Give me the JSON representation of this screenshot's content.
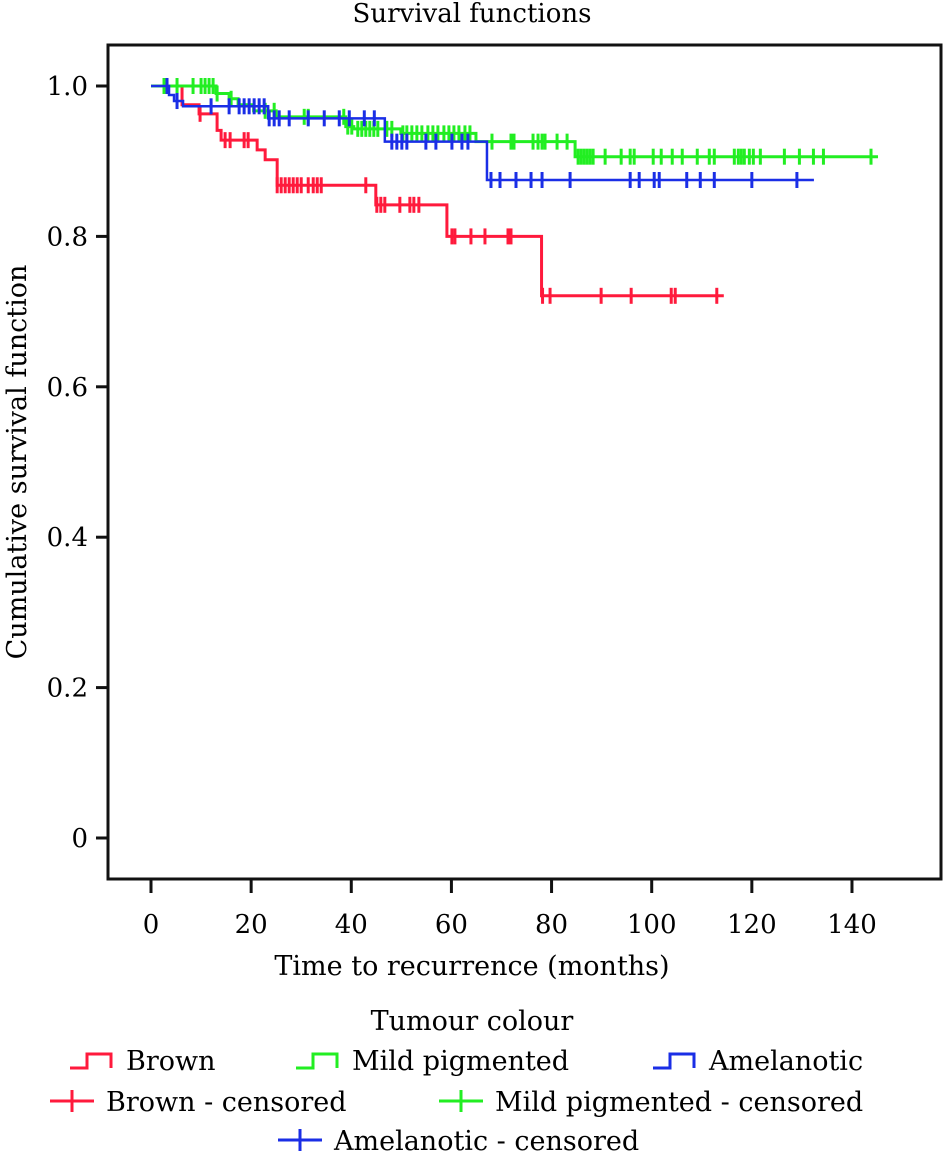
{
  "chart_data": {
    "type": "line",
    "subtype": "kaplan-meier-step",
    "title": "Survival functions",
    "xlabel": "Time to recurrence (months)",
    "ylabel": "Cumulative survival function",
    "xlim": [
      -3,
      158
    ],
    "ylim": [
      -0.055,
      1.055
    ],
    "xticks": [
      0,
      20,
      40,
      60,
      80,
      100,
      120,
      140
    ],
    "xtick_labels": [
      "0",
      "20",
      "40",
      "60",
      "80",
      "100",
      "120",
      "140"
    ],
    "yticks": [
      0,
      0.2,
      0.4,
      0.6,
      0.8,
      1.0
    ],
    "ytick_labels": [
      "0",
      "0.2",
      "0.4",
      "0.6",
      "0.8",
      "1.0"
    ],
    "grid": false,
    "legend": {
      "title": "Tumour colour",
      "placement": "bottom",
      "entries": [
        {
          "label": "Brown",
          "kind": "step",
          "series": 0
        },
        {
          "label": "Mild pigmented",
          "kind": "step",
          "series": 1
        },
        {
          "label": "Amelanotic",
          "kind": "step",
          "series": 2
        },
        {
          "label": "Brown - censored",
          "kind": "censor",
          "series": 0
        },
        {
          "label": "Mild pigmented - censored",
          "kind": "censor",
          "series": 1
        },
        {
          "label": "Amelanotic - censored",
          "kind": "censor",
          "series": 2
        }
      ]
    },
    "series": [
      {
        "name": "Brown",
        "color": "#ff1a3c",
        "steps": [
          [
            0,
            1.0
          ],
          [
            6.2,
            0.975
          ],
          [
            9.6,
            0.963
          ],
          [
            13.2,
            0.941
          ],
          [
            14.0,
            0.928
          ],
          [
            21.2,
            0.915
          ],
          [
            22.8,
            0.902
          ],
          [
            25.2,
            0.868
          ],
          [
            44.9,
            0.842
          ],
          [
            59.1,
            0.8
          ],
          [
            78.0,
            0.721
          ]
        ],
        "end": 114.4,
        "censored": [
          9.8,
          14.8,
          15.8,
          18.6,
          19.4,
          25.2,
          26.0,
          26.8,
          27.6,
          28.4,
          29.2,
          30.0,
          31.4,
          32.4,
          33.2,
          34.0,
          42.9,
          45.1,
          45.9,
          46.7,
          49.7,
          51.7,
          52.5,
          53.5,
          60.1,
          60.7,
          63.9,
          66.7,
          71.3,
          71.9,
          78.2,
          79.7,
          89.9,
          95.9,
          103.9,
          104.7,
          113.0
        ]
      },
      {
        "name": "Mild pigmented",
        "color": "#22ee22",
        "steps": [
          [
            0,
            1.0
          ],
          [
            13.0,
            0.99
          ],
          [
            15.6,
            0.983
          ],
          [
            17.4,
            0.975
          ],
          [
            20.5,
            0.967
          ],
          [
            25.0,
            0.959
          ],
          [
            38.9,
            0.946
          ],
          [
            40.5,
            0.943
          ],
          [
            49.9,
            0.937
          ],
          [
            64.9,
            0.926
          ],
          [
            84.7,
            0.906
          ]
        ],
        "end": 145.2,
        "censored": [
          2.6,
          5.2,
          8.4,
          10.0,
          10.8,
          11.6,
          12.4,
          13.2,
          16.0,
          22.8,
          24.6,
          30.6,
          31.4,
          38.5,
          39.3,
          40.1,
          41.3,
          42.1,
          42.9,
          43.7,
          44.5,
          45.3,
          47.1,
          48.1,
          50.3,
          51.1,
          52.1,
          53.1,
          54.1,
          55.3,
          56.3,
          57.3,
          58.5,
          59.5,
          60.5,
          61.5,
          62.7,
          63.7,
          68.1,
          71.9,
          72.5,
          76.3,
          77.3,
          78.1,
          78.7,
          81.1,
          83.1,
          85.3,
          85.9,
          86.5,
          87.1,
          87.7,
          88.3,
          90.7,
          93.9,
          95.7,
          96.5,
          100.3,
          101.9,
          104.1,
          106.1,
          109.1,
          111.5,
          112.5,
          116.5,
          117.3,
          117.9,
          118.5,
          119.5,
          120.3,
          121.7,
          126.5,
          129.5,
          132.3,
          134.3,
          143.8
        ]
      },
      {
        "name": "Amelanotic",
        "color": "#1a2ee6",
        "steps": [
          [
            0,
            1.0
          ],
          [
            3.6,
            0.988
          ],
          [
            4.6,
            0.98
          ],
          [
            6.4,
            0.973
          ],
          [
            23.4,
            0.957
          ],
          [
            46.7,
            0.926
          ],
          [
            67.1,
            0.875
          ]
        ],
        "end": 132.4,
        "censored": [
          3.2,
          5.2,
          12.0,
          15.6,
          17.6,
          18.6,
          19.6,
          20.6,
          21.6,
          22.6,
          23.6,
          24.6,
          25.6,
          27.6,
          31.4,
          34.6,
          37.6,
          39.6,
          42.6,
          44.6,
          48.1,
          49.1,
          50.1,
          51.1,
          54.9,
          56.9,
          60.1,
          62.1,
          63.3,
          67.9,
          69.7,
          72.9,
          75.9,
          78.1,
          83.7,
          95.7,
          97.5,
          100.5,
          101.5,
          107.0,
          109.7,
          112.5,
          120.0,
          129.0
        ]
      }
    ]
  }
}
